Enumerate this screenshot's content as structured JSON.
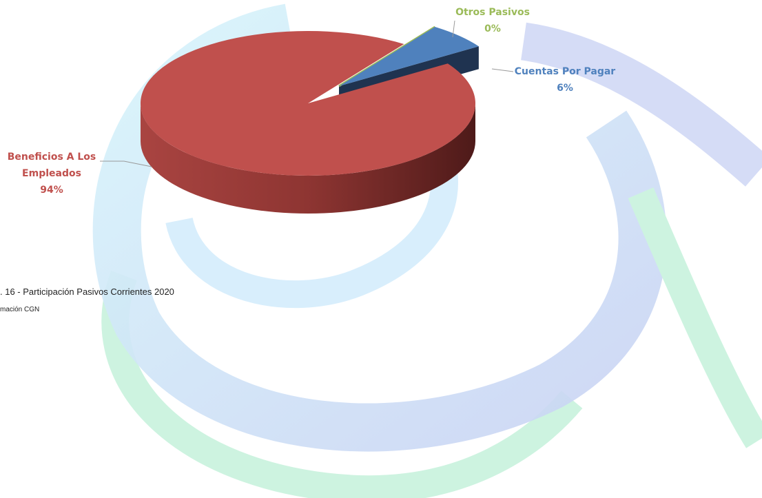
{
  "chart_data": {
    "type": "pie",
    "categories": [
      "Otros Pasivos",
      "Cuentas Por Pagar",
      "Beneficios A Los Empleados"
    ],
    "values": [
      0,
      6,
      94
    ],
    "value_labels": [
      "0%",
      "6%",
      "94%"
    ],
    "colors": [
      "#9bbb59",
      "#4f81bd",
      "#c0504d"
    ],
    "start_angle": -55
  },
  "caption": ". 16 - Participación Pasivos Corrientes 2020",
  "source": "mación  CGN"
}
